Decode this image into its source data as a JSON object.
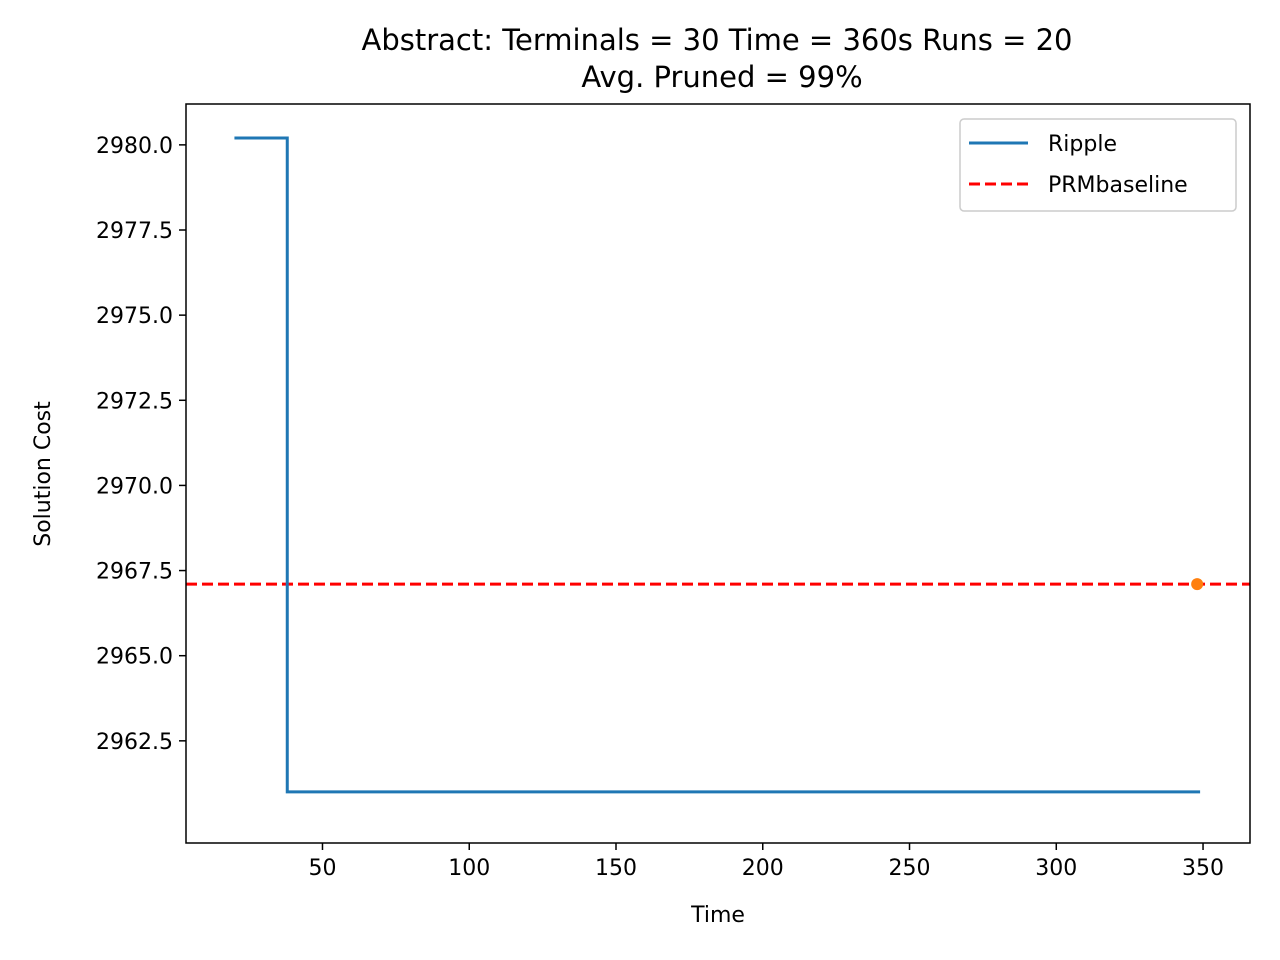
{
  "chart_data": {
    "type": "line",
    "title_line1": "Abstract:  Terminals = 30  Time = 360s  Runs = 20",
    "title_line2": "Avg. Pruned = 99%",
    "xlabel": "Time",
    "ylabel": "Solution Cost",
    "xlim": [
      3.5,
      366
    ],
    "ylim": [
      2959.5,
      2981.2
    ],
    "xticks": [
      50,
      100,
      150,
      200,
      250,
      300,
      350
    ],
    "xtick_labels": [
      "50",
      "100",
      "150",
      "200",
      "250",
      "300",
      "350"
    ],
    "yticks": [
      2962.5,
      2965.0,
      2967.5,
      2970.0,
      2972.5,
      2975.0,
      2977.5,
      2980.0
    ],
    "ytick_labels": [
      "2962.5",
      "2965.0",
      "2967.5",
      "2970.0",
      "2972.5",
      "2975.0",
      "2977.5",
      "2980.0"
    ],
    "grid": false,
    "legend_position": "top-right",
    "series": [
      {
        "name": "Ripple",
        "color": "#1f77b4",
        "style": "solid",
        "x": [
          20,
          38,
          38,
          349
        ],
        "y": [
          2980.2,
          2980.2,
          2961.0,
          2961.0
        ]
      },
      {
        "name": "PRMbaseline",
        "color": "#ff0000",
        "style": "dashed",
        "y": 2967.1
      }
    ],
    "markers": [
      {
        "color": "#ff7f0e",
        "x": 348,
        "y": 2967.1
      }
    ]
  }
}
